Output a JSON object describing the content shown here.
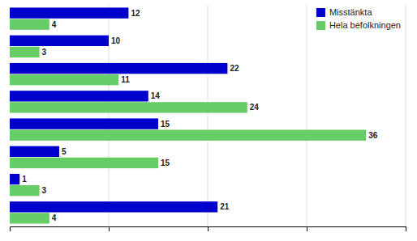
{
  "chart_data": {
    "type": "bar",
    "orientation": "horizontal",
    "categories": [
      null,
      null,
      null,
      null,
      null,
      null,
      null,
      null
    ],
    "series": [
      {
        "name": "Misstänkta",
        "color": "#0000CC",
        "values": [
          12,
          10,
          22,
          14,
          15,
          5,
          1,
          21
        ]
      },
      {
        "name": "Hela befolkningen",
        "color": "#66CC66",
        "values": [
          4,
          3,
          11,
          24,
          36,
          15,
          3,
          4
        ]
      }
    ],
    "xlim": [
      0,
      40
    ],
    "xticks": [
      10,
      20,
      30,
      40
    ],
    "grid": true,
    "tick_labels": false,
    "data_labels": true,
    "legend": "upper right"
  }
}
